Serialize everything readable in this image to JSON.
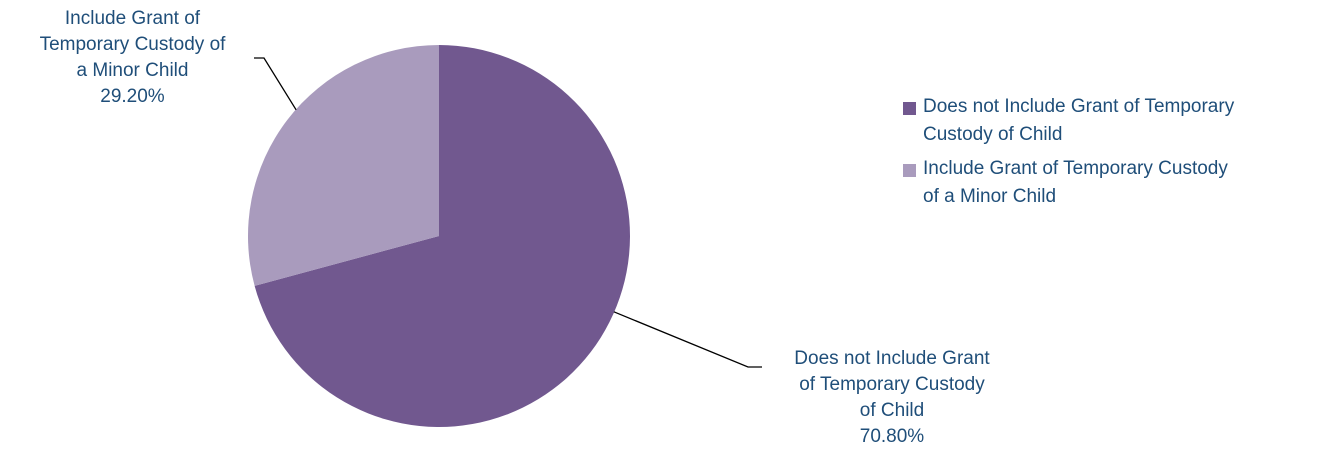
{
  "chart_data": {
    "type": "pie",
    "title": "",
    "slices": [
      {
        "label": "Does not Include Grant of Temporary Custody of Child",
        "value": 70.8,
        "display_value": "70.80%",
        "color": "#71588f",
        "data_label_lines": [
          "Does not Include Grant",
          "of Temporary Custody",
          "of Child",
          "70.80%"
        ],
        "legend_lines": [
          "Does not Include Grant of Temporary",
          "Custody of Child"
        ]
      },
      {
        "label": "Include Grant of Temporary Custody of a Minor Child",
        "value": 29.2,
        "display_value": "29.20%",
        "color": "#a99bbd",
        "data_label_lines": [
          "Include Grant of",
          "Temporary Custody of",
          "a Minor Child",
          "29.20%"
        ],
        "legend_lines": [
          "Include Grant of Temporary Custody",
          "of a Minor Child"
        ]
      }
    ],
    "start_angle_deg": 0,
    "direction": "clockwise",
    "legend_position": "right",
    "leader_lines": true,
    "label_color": "#1f4e79"
  }
}
